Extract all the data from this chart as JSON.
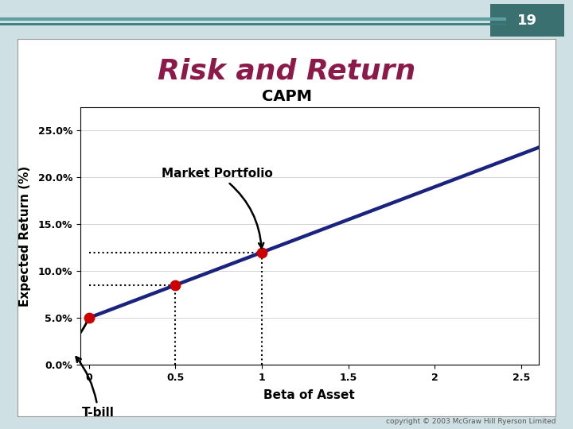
{
  "title": "Risk and Return",
  "subtitle": "CAPM",
  "xlabel": "Beta of Asset",
  "ylabel": "Expected Return (%)",
  "slide_number": "19",
  "background_color": "#cfe0e4",
  "content_box_color": "#ffffff",
  "content_box_border": "#aaaaaa",
  "title_color": "#8b1a4a",
  "title_bg_color": "#cfe0e4",
  "header_line_color1": "#5f9ea0",
  "header_line_color2": "#3a7a7a",
  "slide_num_bg": "#3a7070",
  "sml_color": "#1a237e",
  "sml_linewidth": 3.2,
  "curve_color": "#000000",
  "curve_linewidth": 2.0,
  "dot_color": "#cc0000",
  "dot_size": 80,
  "ylim": [
    0.0,
    0.275
  ],
  "xlim": [
    -0.05,
    2.6
  ],
  "yticks": [
    0.0,
    0.05,
    0.1,
    0.15,
    0.2,
    0.25
  ],
  "ytick_labels": [
    "0.0%",
    "5.0%",
    "10.0%",
    "15.0%",
    "20.0%",
    "25.0%"
  ],
  "xticks": [
    0,
    0.5,
    1,
    1.5,
    2,
    2.5
  ],
  "xtick_labels": [
    "0",
    "0.5",
    "1",
    "1.5",
    "2",
    "2.5"
  ],
  "rf": 0.05,
  "rm": 0.12,
  "beta_m": 1.0,
  "key_points": [
    {
      "beta": 0.0,
      "ret": 0.05
    },
    {
      "beta": 0.5,
      "ret": 0.085
    },
    {
      "beta": 1.0,
      "ret": 0.12
    }
  ],
  "dotted_points": [
    {
      "beta": 0.5,
      "ret": 0.085
    },
    {
      "beta": 1.0,
      "ret": 0.12
    }
  ],
  "market_portfolio_label": "Market Portfolio",
  "tbill_label": "T-bill",
  "copyright": "copyright © 2003 McGraw Hill Ryerson Limited",
  "title_fontsize": 26,
  "subtitle_fontsize": 14,
  "axis_label_fontsize": 11,
  "tick_fontsize": 9,
  "annotation_fontsize": 11
}
